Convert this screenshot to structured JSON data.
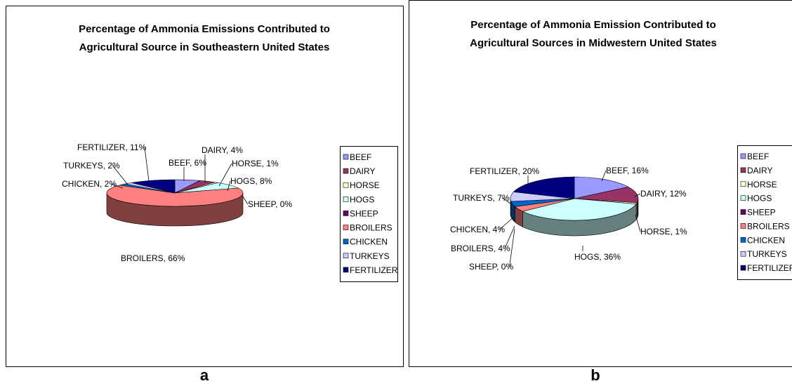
{
  "chart_data": [
    {
      "type": "pie",
      "panel_label": "a",
      "title_lines": [
        "Percentage of Ammonia Emissions Contributed to",
        "Agricultural Source in Southeastern United States"
      ],
      "categories": [
        "BEEF",
        "DAIRY",
        "HORSE",
        "HOGS",
        "SHEEP",
        "BROILERS",
        "CHICKEN",
        "TURKEYS",
        "FERTILIZER"
      ],
      "values": [
        6,
        4,
        1,
        8,
        0,
        66,
        2,
        2,
        11
      ],
      "data_labels": [
        "BEEF, 6%",
        "DAIRY, 4%",
        "HORSE, 1%",
        "HOGS, 8%",
        "SHEEP, 0%",
        "BROILERS, 66%",
        "CHICKEN, 2%",
        "TURKEYS, 2%",
        "FERTILIZER, 11%"
      ],
      "legend": "right"
    },
    {
      "type": "pie",
      "panel_label": "b",
      "title_lines": [
        "Percentage of Ammonia Emission Contributed to",
        "Agricultural Sources in Midwestern United States"
      ],
      "categories": [
        "BEEF",
        "DAIRY",
        "HORSE",
        "HOGS",
        "SHEEP",
        "BROILERS",
        "CHICKEN",
        "TURKEYS",
        "FERTILIZER"
      ],
      "values": [
        16,
        12,
        1,
        36,
        0,
        4,
        4,
        7,
        20
      ],
      "data_labels": [
        "BEEF, 16%",
        "DAIRY, 12%",
        "HORSE, 1%",
        "HOGS, 36%",
        "SHEEP, 0%",
        "BROILERS, 4%",
        "CHICKEN, 4%",
        "TURKEYS, 7%",
        "FERTILIZER, 20%"
      ],
      "legend": "right"
    }
  ],
  "colors": [
    "#9999FF",
    "#993366",
    "#FFFFCC",
    "#CCFFFF",
    "#660066",
    "#FF8080",
    "#0066CC",
    "#CCCCFF",
    "#000080"
  ]
}
